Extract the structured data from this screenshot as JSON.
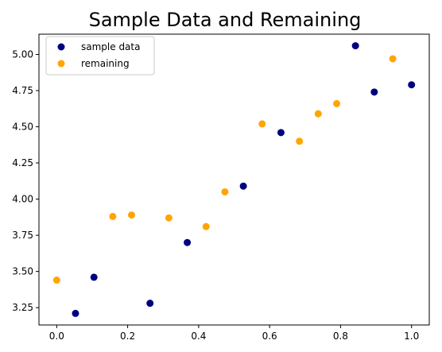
{
  "chart_data": {
    "type": "scatter",
    "title": "Sample Data and Remaining",
    "xlabel": "",
    "ylabel": "",
    "xlim": [
      -0.05,
      1.05
    ],
    "ylim": [
      3.13,
      5.14
    ],
    "xticks": [
      0.0,
      0.2,
      0.4,
      0.6,
      0.8,
      1.0
    ],
    "xtick_labels": [
      "0.0",
      "0.2",
      "0.4",
      "0.6",
      "0.8",
      "1.0"
    ],
    "yticks": [
      3.25,
      3.5,
      3.75,
      4.0,
      4.25,
      4.5,
      4.75,
      5.0
    ],
    "ytick_labels": [
      "3.25",
      "3.50",
      "3.75",
      "4.00",
      "4.25",
      "4.50",
      "4.75",
      "5.00"
    ],
    "grid": false,
    "legend_position": "upper-left",
    "series": [
      {
        "name": "sample data",
        "color": "#000080",
        "points": [
          [
            0.053,
            3.21
          ],
          [
            0.105,
            3.46
          ],
          [
            0.263,
            3.28
          ],
          [
            0.368,
            3.7
          ],
          [
            0.526,
            4.09
          ],
          [
            0.632,
            4.46
          ],
          [
            0.842,
            5.06
          ],
          [
            0.895,
            4.74
          ],
          [
            1.0,
            4.79
          ]
        ]
      },
      {
        "name": "remaining",
        "color": "#FFA500",
        "points": [
          [
            0.0,
            3.44
          ],
          [
            0.158,
            3.88
          ],
          [
            0.211,
            3.89
          ],
          [
            0.316,
            3.87
          ],
          [
            0.421,
            3.81
          ],
          [
            0.474,
            4.05
          ],
          [
            0.579,
            4.52
          ],
          [
            0.684,
            4.4
          ],
          [
            0.737,
            4.59
          ],
          [
            0.789,
            4.66
          ],
          [
            0.947,
            4.97
          ]
        ]
      }
    ]
  }
}
